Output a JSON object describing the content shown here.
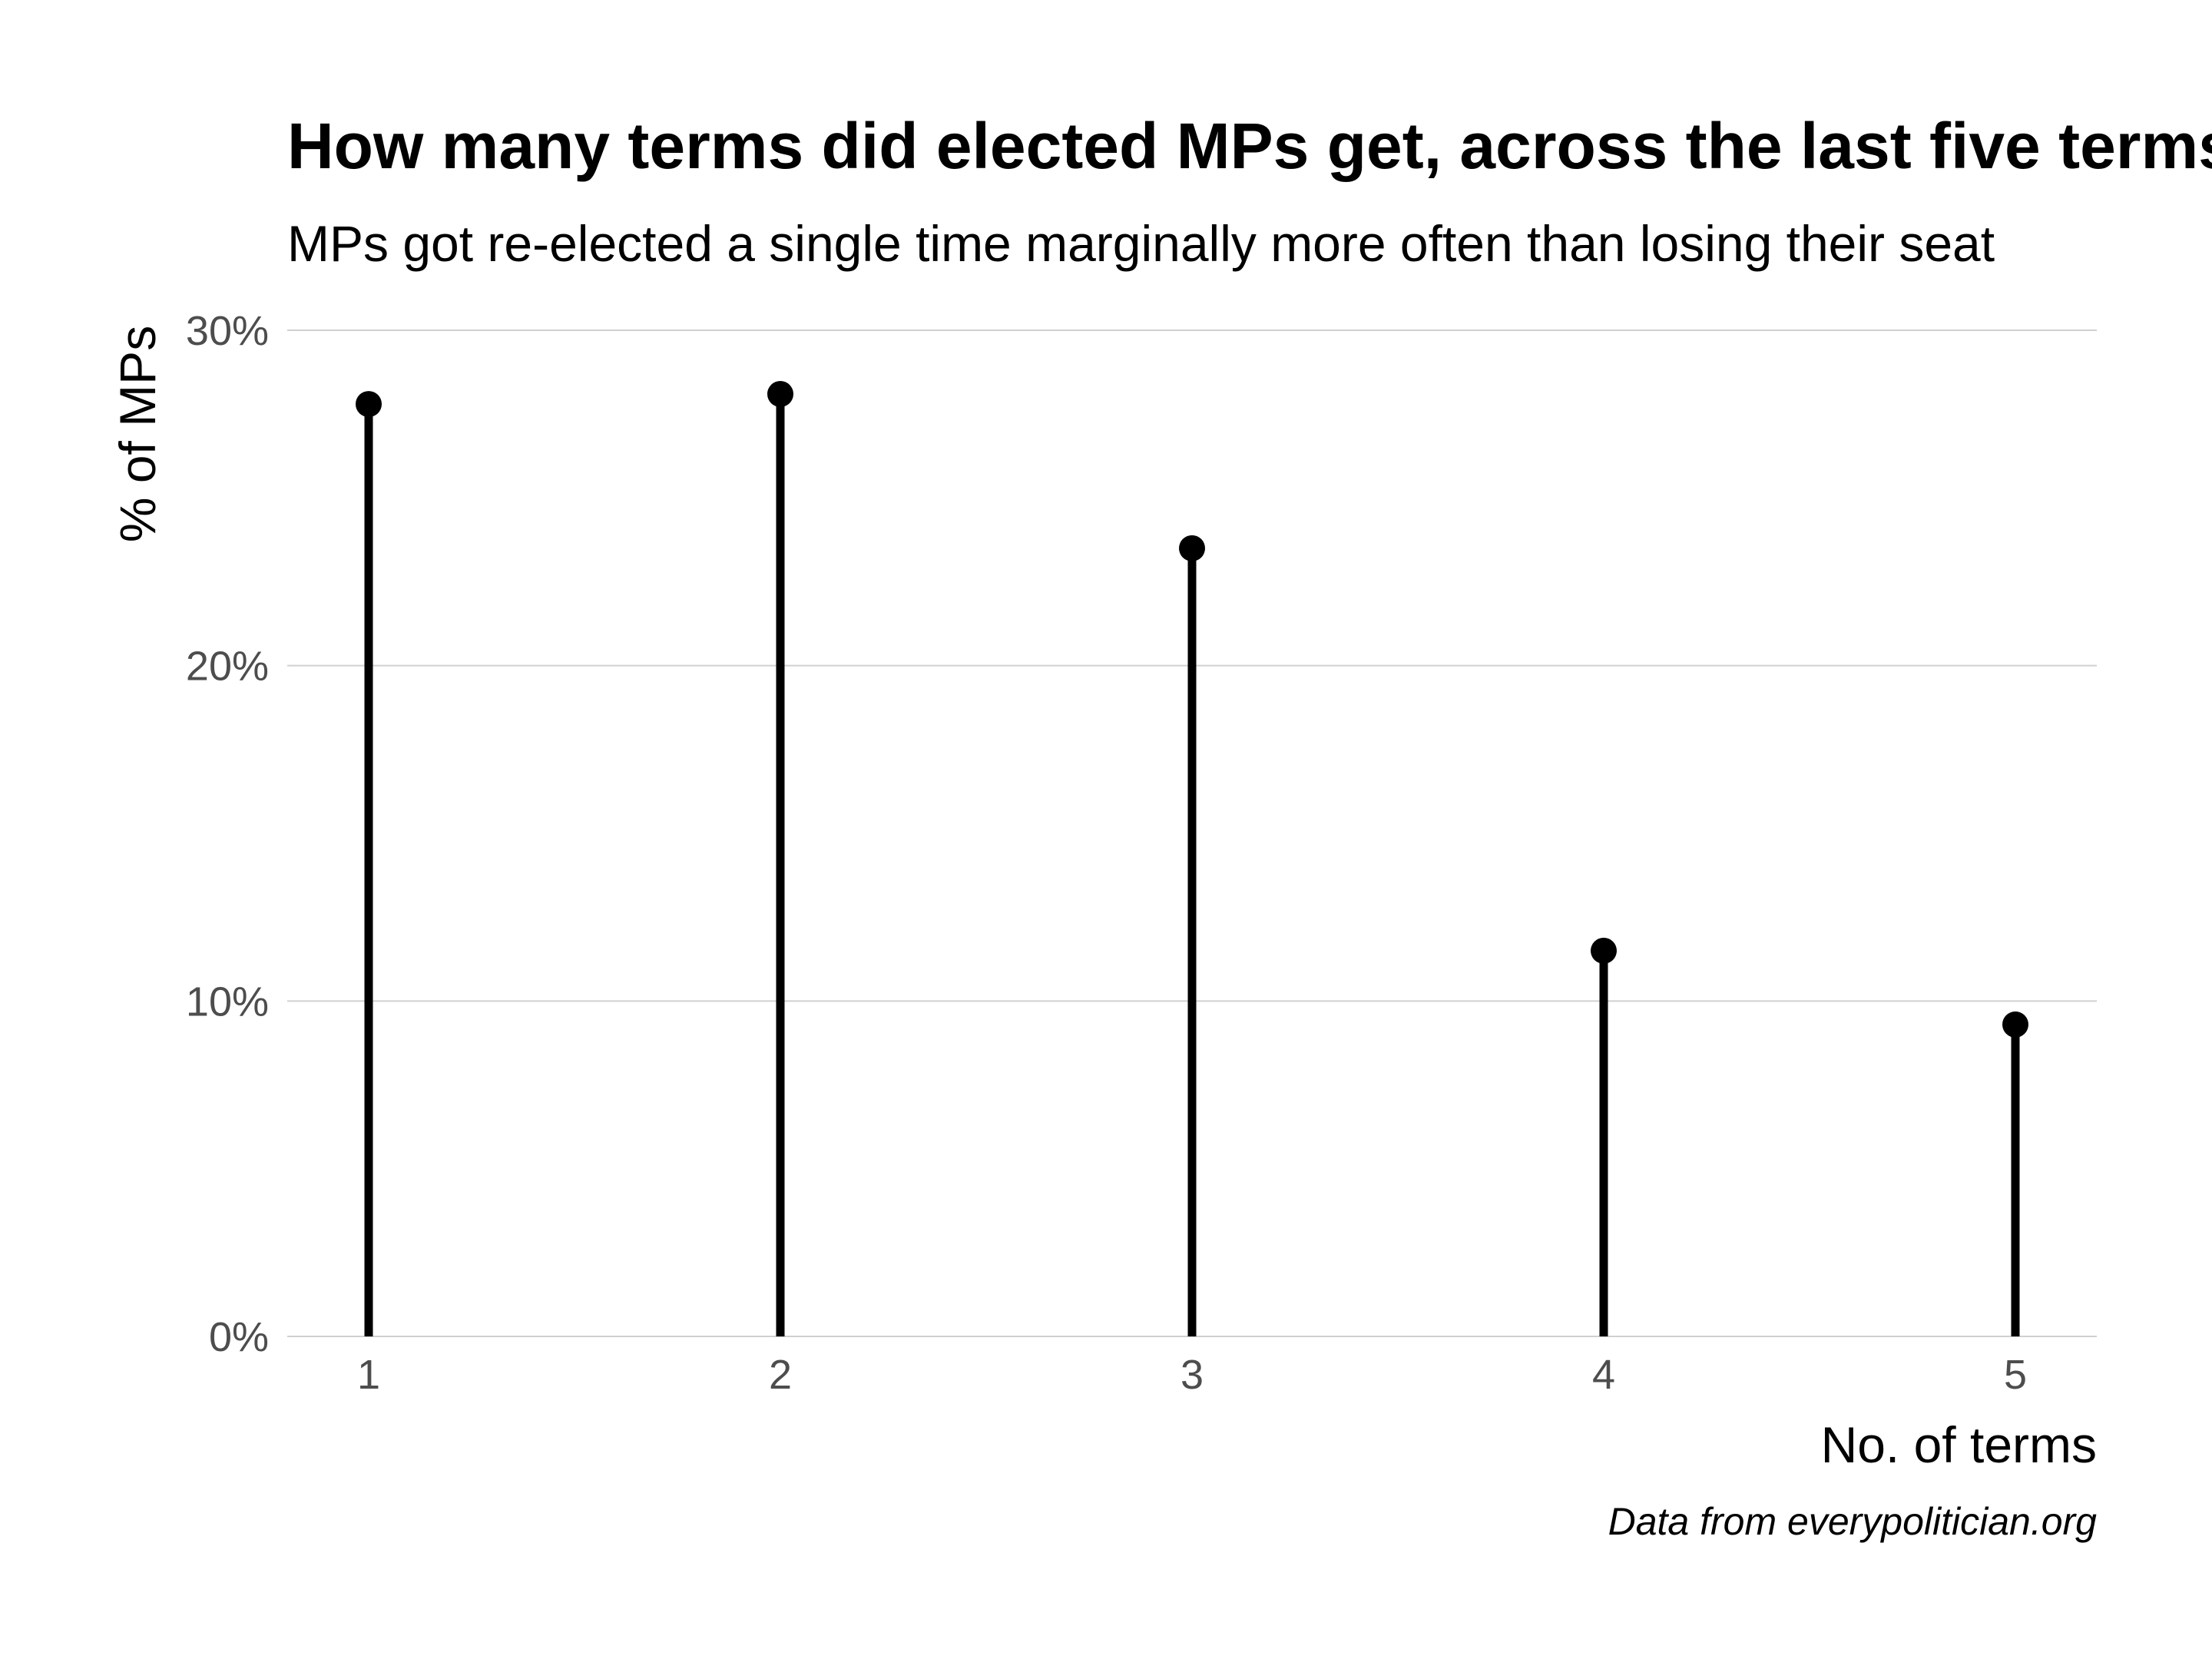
{
  "chart_data": {
    "type": "lollipop",
    "title": "How many terms did elected MPs get, across the last five terms?",
    "subtitle": "MPs got re-elected a single time marginally more often than losing their seat",
    "xlabel": "No. of terms",
    "ylabel": "% of MPs",
    "caption": "Data from everypolitician.org",
    "categories": [
      "1",
      "2",
      "3",
      "4",
      "5"
    ],
    "values": [
      27.8,
      28.1,
      23.5,
      11.5,
      9.3
    ],
    "y_unit": "%",
    "ylim": [
      0,
      30
    ],
    "yticks": [
      0,
      10,
      20,
      30
    ],
    "ytick_labels": [
      "0%",
      "10%",
      "20%",
      "30%"
    ],
    "grid": "horizontal",
    "legend": "none",
    "colors": {
      "marks": "#000000",
      "grid": "#d0d0d0",
      "tick_text": "#4d4d4d",
      "background": "#ffffff"
    }
  }
}
